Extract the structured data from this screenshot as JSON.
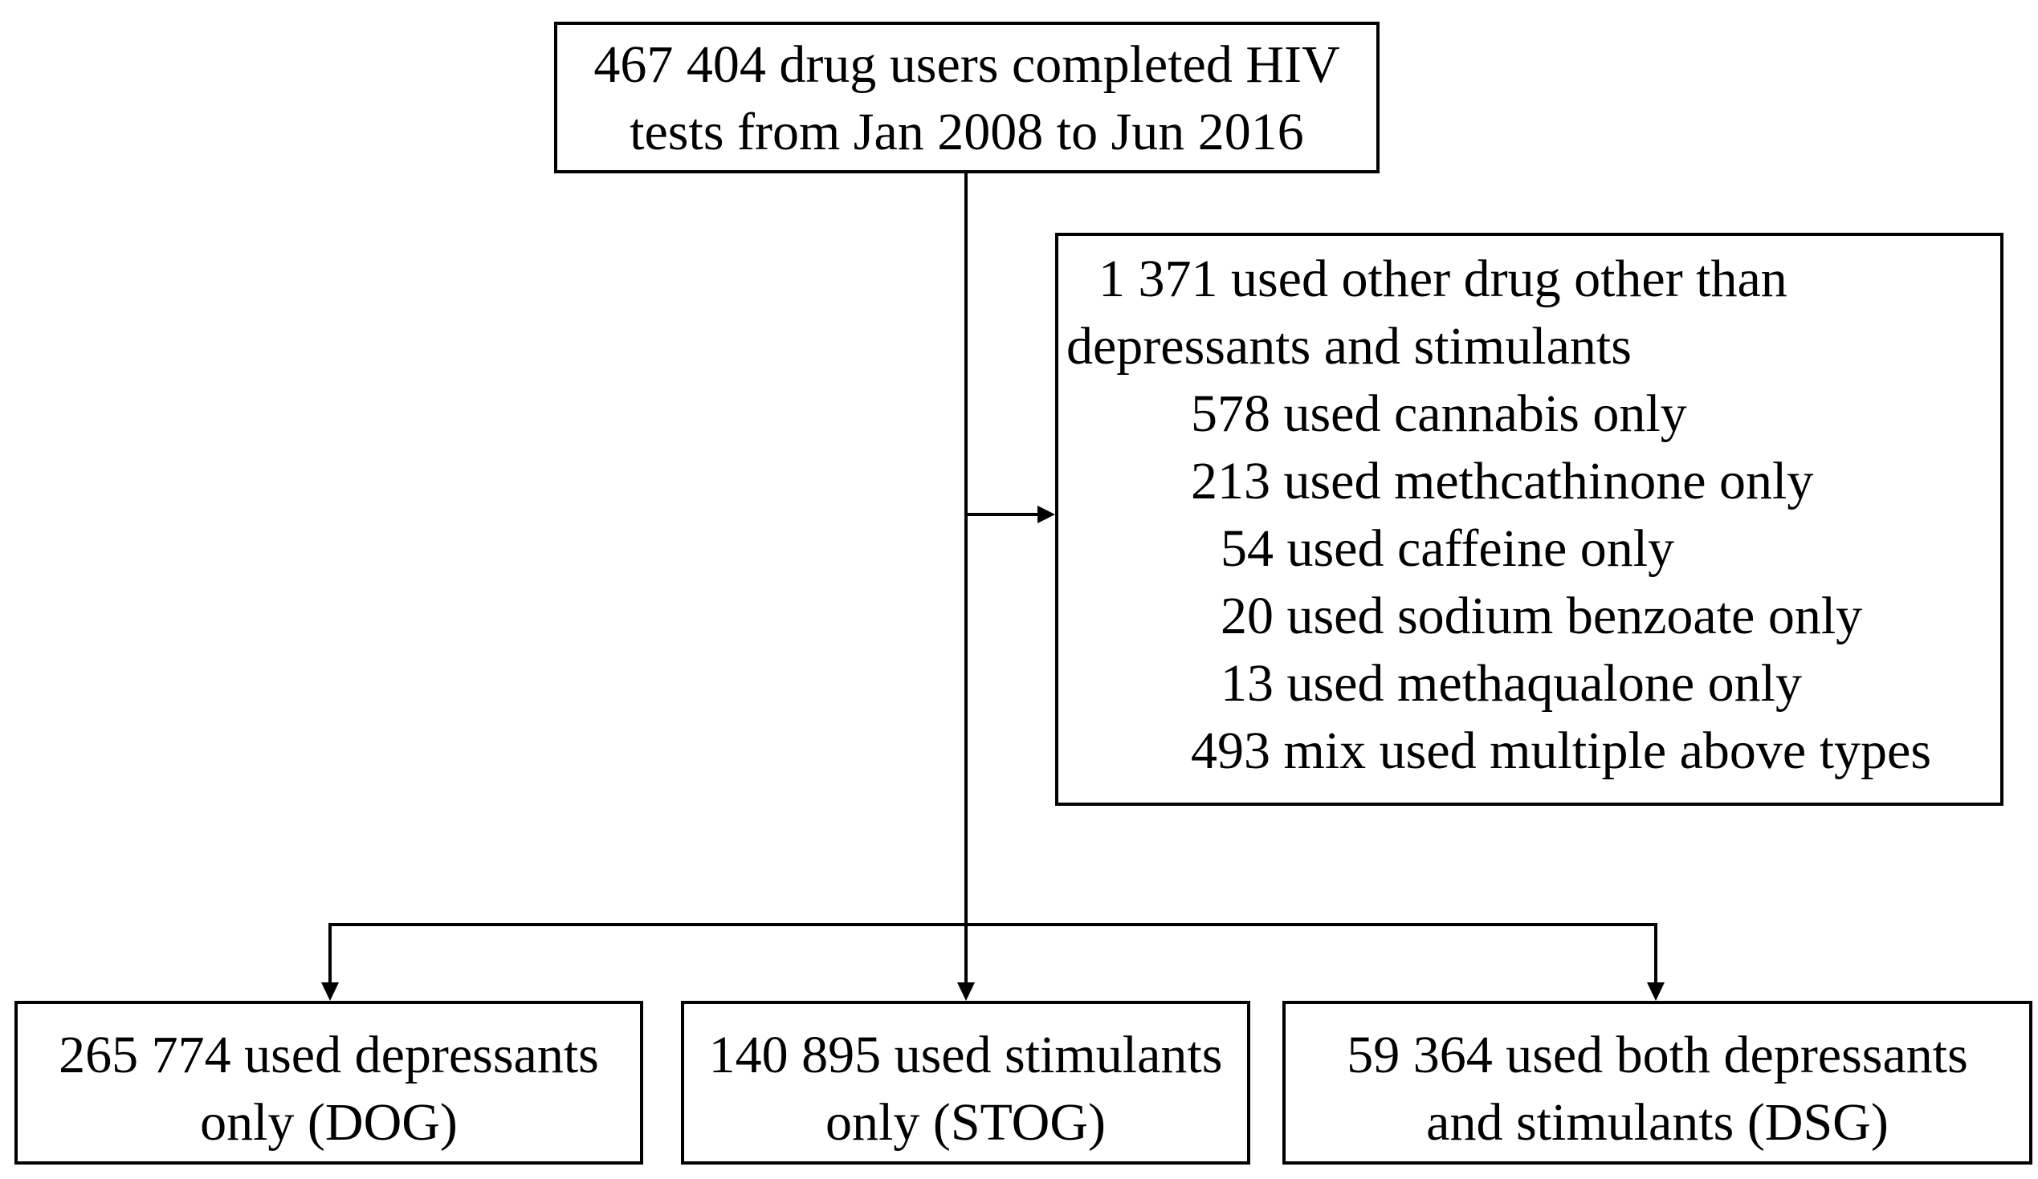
{
  "top": {
    "line1": "467 404 drug users completed HIV",
    "line2": "tests from Jan 2008 to Jun 2016"
  },
  "excluded": {
    "line1": "1 371 used other drug other than",
    "line2": "depressants and stimulants",
    "items": [
      "578 used cannabis only",
      "213 used methcathinone only",
      "54 used caffeine only",
      "20 used sodium benzoate only",
      "13 used methaqualone only",
      "493 mix used multiple above types"
    ]
  },
  "groups": [
    {
      "line1": "265 774 used depressants",
      "line2": "only (DOG)"
    },
    {
      "line1": "140 895 used stimulants",
      "line2": "only (STOG)"
    },
    {
      "line1": "59 364 used both depressants",
      "line2": "and stimulants (DSG)"
    }
  ]
}
